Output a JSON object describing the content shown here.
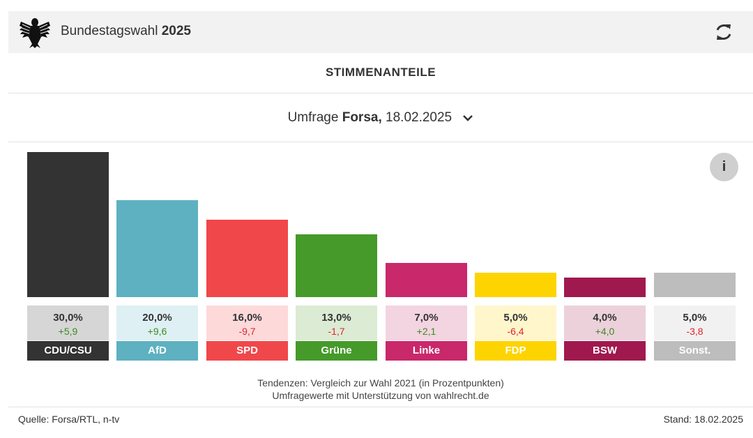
{
  "header": {
    "title_prefix": "Bundestagswahl",
    "title_year": "2025",
    "logo_icon": "federal-eagle-icon",
    "refresh_icon": "refresh-icon"
  },
  "section_title": "STIMMENANTEILE",
  "poll": {
    "prefix": "Umfrage",
    "institute": "Forsa,",
    "date": "18.02.2025",
    "dropdown_icon": "chevron-down-icon"
  },
  "info_label": "i",
  "chart_data": {
    "type": "bar",
    "categories": [
      "CDU/CSU",
      "AfD",
      "SPD",
      "Grüne",
      "Linke",
      "FDP",
      "BSW",
      "Sonst."
    ],
    "values": [
      30.0,
      20.0,
      16.0,
      13.0,
      7.0,
      5.0,
      4.0,
      5.0
    ],
    "value_labels": [
      "30,0%",
      "20,0%",
      "16,0%",
      "13,0%",
      "7,0%",
      "5,0%",
      "4,0%",
      "5,0%"
    ],
    "changes": [
      5.9,
      9.6,
      -9.7,
      -1.7,
      2.1,
      -6.4,
      4.0,
      -3.8
    ],
    "change_labels": [
      "+5,9",
      "+9,6",
      "-9,7",
      "-1,7",
      "+2,1",
      "-6,4",
      "+4,0",
      "-3,8"
    ],
    "colors": [
      "#333333",
      "#5eb1c0",
      "#f0474a",
      "#459a2a",
      "#c9286a",
      "#fdd400",
      "#a0194e",
      "#bdbdbd"
    ],
    "tint_colors": [
      "#d6d6d6",
      "#def0f3",
      "#fdd9da",
      "#dcebd4",
      "#f3d4e1",
      "#fff6cc",
      "#ecd1db",
      "#f1f1f1"
    ],
    "positive_color": "#3c8a22",
    "negative_color": "#e0242c"
  },
  "footnote": {
    "line1": "Tendenzen: Vergleich zur Wahl 2021 (in Prozentpunkten)",
    "line2": "Umfragewerte mit Unterstützung von wahlrecht.de"
  },
  "footer": {
    "source": "Quelle: Forsa/RTL, n-tv",
    "stand": "Stand: 18.02.2025"
  }
}
